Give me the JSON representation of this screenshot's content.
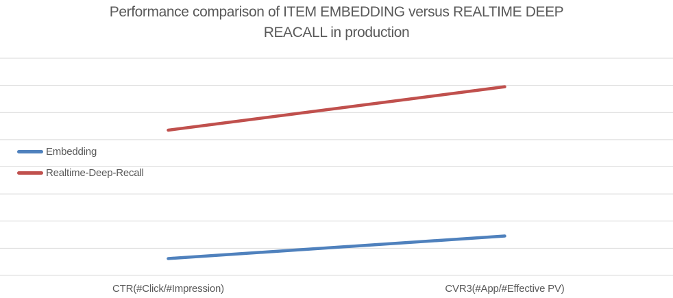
{
  "title": {
    "lines": [
      "Performance comparison of ITEM EMBEDDING versus REALTIME DEEP",
      "REACALL in production"
    ]
  },
  "colors": {
    "series_embedding": "#4F81BD",
    "series_realtime_deep_recall": "#C0504D",
    "gridline": "#D9D9D9",
    "text": "#595959",
    "background": "#FFFFFF"
  },
  "chart_data": {
    "type": "line",
    "title": "Performance comparison of ITEM EMBEDDING versus REALTIME DEEP REACALL in production",
    "categories": [
      "CTR(#Click/#Impression)",
      "CVR3(#App/#Effective PV)"
    ],
    "series": [
      {
        "name": "Embedding",
        "color": "#4F81BD",
        "values": [
          0.62,
          1.45
        ]
      },
      {
        "name": "Realtime-Deep-Recall",
        "color": "#C0504D",
        "values": [
          5.35,
          6.95
        ]
      }
    ],
    "xlabel": "",
    "ylabel": "",
    "ylim": [
      0,
      8
    ],
    "y_units": "gridline intervals (y axis has no visible tick labels; values estimated from gridlines, bottom gridline = 0)",
    "gridlines": "horizontal",
    "gridline_count": 9,
    "legend_position": "inside-left",
    "legend_entries": [
      "Embedding",
      "Realtime-Deep-Recall"
    ]
  }
}
